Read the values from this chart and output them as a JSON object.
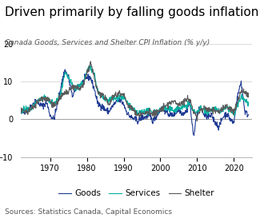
{
  "title": "Driven primarily by falling goods inflation",
  "subtitle": "Canada Goods, Services and Shelter CPI Inflation (% y/y)",
  "source": "Sources: Statistics Canada, Capital Economics",
  "ylim": [
    -10,
    20
  ],
  "yticks": [
    -10,
    0,
    10,
    20
  ],
  "legend_labels": [
    "Goods",
    "Services",
    "Shelter"
  ],
  "line_colors": [
    "#1f3a93",
    "#00b0a0",
    "#5a5a5a"
  ],
  "background_color": "#ffffff",
  "title_fontsize": 11,
  "subtitle_fontsize": 6.5,
  "source_fontsize": 6.5,
  "legend_fontsize": 7.5,
  "tick_fontsize": 7,
  "xlim": [
    1962,
    2025
  ],
  "xticks": [
    1970,
    1980,
    1990,
    2000,
    2010,
    2020
  ]
}
